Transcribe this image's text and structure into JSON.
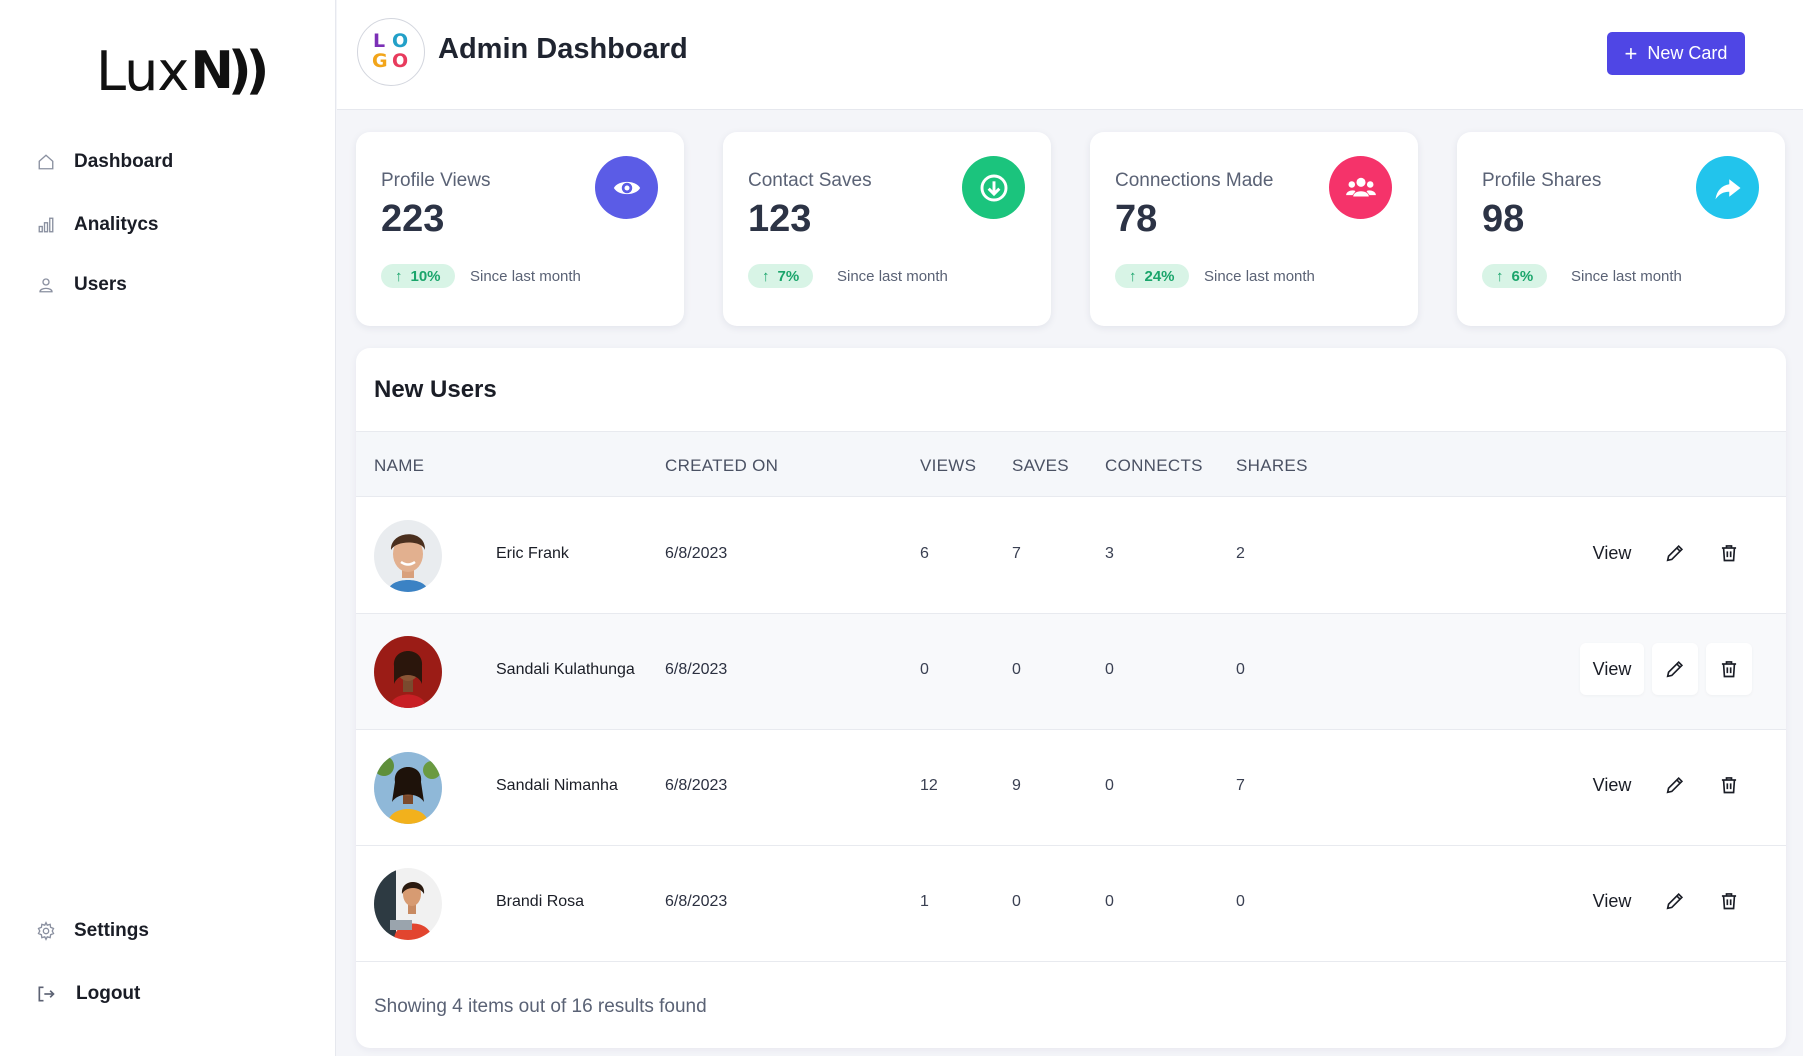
{
  "brand": {
    "name": "Lux",
    "mark": "N))"
  },
  "sidebar": {
    "items": [
      {
        "label": "Dashboard",
        "icon": "home-icon"
      },
      {
        "label": "Analitycs",
        "icon": "bar-chart-icon"
      },
      {
        "label": "Users",
        "icon": "user-icon"
      }
    ],
    "bottom_items": [
      {
        "label": "Settings",
        "icon": "gear-icon"
      },
      {
        "label": "Logout",
        "icon": "logout-icon"
      }
    ]
  },
  "header": {
    "logo_letters": [
      "L",
      "O",
      "G",
      "O"
    ],
    "title": "Admin Dashboard",
    "new_card_label": "New Card",
    "new_card_icon": "plus-icon",
    "accent_color": "#4f46e5"
  },
  "stats": [
    {
      "title": "Profile Views",
      "value": "223",
      "change": "10%",
      "since": "Since last month",
      "icon": "eye-icon",
      "color": "#5b5ce6"
    },
    {
      "title": "Contact Saves",
      "value": "123",
      "change": "7%",
      "since": "Since last month",
      "icon": "download-icon",
      "color": "#1bc47d"
    },
    {
      "title": "Connections Made",
      "value": "78",
      "change": "24%",
      "since": "Since last month",
      "icon": "users-icon",
      "color": "#f5336a"
    },
    {
      "title": "Profile Shares",
      "value": "98",
      "change": "6%",
      "since": "Since last month",
      "icon": "share-icon",
      "color": "#22c4ec"
    }
  ],
  "users_panel": {
    "title": "New Users",
    "columns": [
      "NAME",
      "CREATED ON",
      "VIEWS",
      "SAVES",
      "CONNECTS",
      "SHARES"
    ],
    "rows": [
      {
        "name": "Eric Frank",
        "created_on": "6/8/2023",
        "views": "6",
        "saves": "7",
        "connects": "3",
        "shares": "2"
      },
      {
        "name": "Sandali Kulathunga",
        "created_on": "6/8/2023",
        "views": "0",
        "saves": "0",
        "connects": "0",
        "shares": "0"
      },
      {
        "name": "Sandali Nimanha",
        "created_on": "6/8/2023",
        "views": "12",
        "saves": "9",
        "connects": "0",
        "shares": "7"
      },
      {
        "name": "Brandi Rosa",
        "created_on": "6/8/2023",
        "views": "1",
        "saves": "0",
        "connects": "0",
        "shares": "0"
      }
    ],
    "action_view_label": "View",
    "footer": "Showing 4 items out of 16 results found"
  }
}
